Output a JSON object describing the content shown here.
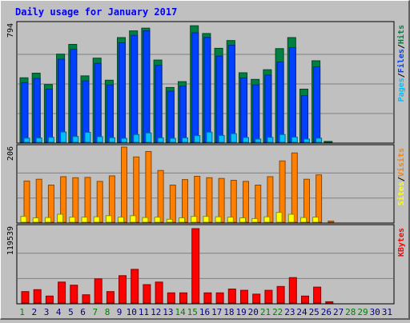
{
  "chart_data": {
    "type": "bar",
    "title": "Daily usage for January 2017",
    "categories": [
      "1",
      "2",
      "3",
      "4",
      "5",
      "6",
      "7",
      "8",
      "9",
      "10",
      "11",
      "12",
      "13",
      "14",
      "15",
      "16",
      "17",
      "18",
      "19",
      "20",
      "21",
      "22",
      "23",
      "24",
      "25",
      "26",
      "27",
      "28",
      "29",
      "30",
      "31"
    ],
    "weekend_days": [
      "1",
      "7",
      "8",
      "14",
      "15",
      "21",
      "22",
      "28",
      "29"
    ],
    "panels": [
      {
        "id": "hits",
        "ymax_label": "794",
        "ymax": 794,
        "right_label_parts": [
          "Pages",
          "/",
          "Files",
          "/",
          "Hits"
        ],
        "series": [
          {
            "name": "Hits",
            "color": "#008040",
            "values": [
              433,
              464,
              388,
              592,
              657,
              446,
              565,
              417,
              703,
              748,
              766,
              552,
              368,
              407,
              782,
              730,
              631,
              683,
              467,
              422,
              487,
              629,
              703,
              357,
              547,
              6,
              0,
              0,
              0,
              0,
              0
            ]
          },
          {
            "name": "Files",
            "color": "#0040ff",
            "values": [
              400,
              429,
              357,
              558,
              624,
              412,
              530,
              385,
              668,
              718,
              748,
              516,
              343,
              377,
              735,
              704,
              579,
              652,
              432,
              385,
              451,
              539,
              635,
              313,
              506,
              0,
              0,
              0,
              0,
              0,
              0
            ]
          },
          {
            "name": "Pages",
            "color": "#00c0ff",
            "values": [
              28,
              29,
              33,
              69,
              39,
              67,
              38,
              31,
              27,
              52,
              63,
              30,
              27,
              30,
              45,
              68,
              46,
              58,
              32,
              22,
              33,
              52,
              35,
              22,
              28,
              0,
              0,
              0,
              0,
              0,
              0
            ]
          }
        ]
      },
      {
        "id": "visits",
        "ymax_label": "206",
        "ymax": 206,
        "right_label_parts": [
          "Sites",
          "/",
          "Visits"
        ],
        "series": [
          {
            "name": "Visits",
            "color": "#ff8000",
            "values": [
              113,
              118,
              102,
              125,
              122,
              123,
              112,
              127,
              206,
              179,
              194,
              142,
              102,
              117,
              126,
              122,
              120,
              115,
              112,
              102,
              125,
              168,
              190,
              118,
              130,
              3,
              0,
              0,
              0,
              0,
              0
            ]
          },
          {
            "name": "Sites",
            "color": "#ffff00",
            "values": [
              16,
              12,
              13,
              22,
              14,
              14,
              15,
              18,
              14,
              18,
              13,
              14,
              8,
              12,
              16,
              16,
              15,
              14,
              12,
              10,
              15,
              27,
              22,
              13,
              14,
              0,
              0,
              0,
              0,
              0,
              0
            ]
          }
        ]
      },
      {
        "id": "kbytes",
        "ymax_label": "119539",
        "ymax": 119539,
        "right_label_parts": [
          "KBytes"
        ],
        "series": [
          {
            "name": "KBytes",
            "color": "#ff0000",
            "values": [
              18000,
              21000,
              11000,
              33000,
              28000,
              13000,
              38000,
              18000,
              43000,
              53000,
              29000,
              33000,
              16000,
              16000,
              117000,
              16000,
              16000,
              22000,
              20000,
              14000,
              20000,
              26000,
              40000,
              11000,
              25000,
              2000,
              0,
              0,
              0,
              0,
              0
            ]
          }
        ]
      }
    ],
    "colors": {
      "title": "#0000ff",
      "weekday_label": "#000080",
      "weekend_label": "#008000",
      "background": "#c0c0c0",
      "grid": "#808080"
    }
  }
}
